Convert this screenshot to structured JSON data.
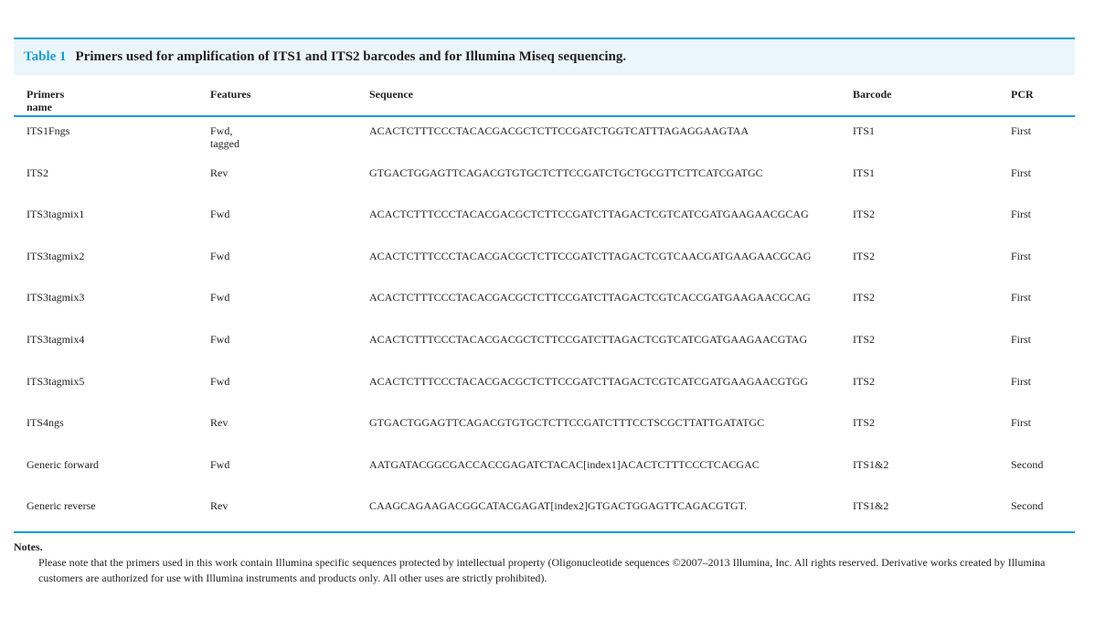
{
  "caption": {
    "label": "Table 1",
    "title": "Primers used for amplification of ITS1 and ITS2 barcodes and for Illumina Miseq sequencing."
  },
  "headers": [
    "Primers name",
    "Features",
    "Sequence",
    "Barcode",
    "PCR"
  ],
  "rows": [
    [
      "ITS1Fngs",
      "Fwd, tagged",
      "ACACTCTTTCCCTACACGACGCTCTTCCGATCTGGTCATTTAGAGGAAGTAA",
      "ITS1",
      "First"
    ],
    [
      "ITS2",
      "Rev",
      "GTGACTGGAGTTCAGACGTGTGCTCTTCCGATCTGCTGCGTTCTTCATCGATGC",
      "ITS1",
      "First"
    ],
    [
      "ITS3tagmix1",
      "Fwd",
      "ACACTCTTTCCCTACACGACGCTCTTCCGATCTTAGACTCGTCATCGATGAAGAACGCAG",
      "ITS2",
      "First"
    ],
    [
      "ITS3tagmix2",
      "Fwd",
      "ACACTCTTTCCCTACACGACGCTCTTCCGATCTTAGACTCGTCAACGATGAAGAACGCAG",
      "ITS2",
      "First"
    ],
    [
      "ITS3tagmix3",
      "Fwd",
      "ACACTCTTTCCCTACACGACGCTCTTCCGATCTTAGACTCGTCACCGATGAAGAACGCAG",
      "ITS2",
      "First"
    ],
    [
      "ITS3tagmix4",
      "Fwd",
      "ACACTCTTTCCCTACACGACGCTCTTCCGATCTTAGACTCGTCATCGATGAAGAACGTAG",
      "ITS2",
      "First"
    ],
    [
      "ITS3tagmix5",
      "Fwd",
      "ACACTCTTTCCCTACACGACGCTCTTCCGATCTTAGACTCGTCATCGATGAAGAACGTGG",
      "ITS2",
      "First"
    ],
    [
      "ITS4ngs",
      "Rev",
      "GTGACTGGAGTTCAGACGTGTGCTCTTCCGATCTTTCCTSCGCTTATTGATATGC",
      "ITS2",
      "First"
    ],
    [
      "Generic forward",
      "Fwd",
      "AATGATACGGCGACCACCGAGATCTACAC[index1]ACACTCTTTCCCTCACGAC",
      "ITS1&2",
      "Second"
    ],
    [
      "Generic reverse",
      "Rev",
      "CAAGCAGAAGACGGCATACGAGAT[index2]GTGACTGGAGTTCAGACGTGT.",
      "ITS1&2",
      "Second"
    ]
  ],
  "notes": {
    "label": "Notes.",
    "text": "Please note that the primers used in this work contain Illumina specific sequences protected by intellectual property (Oligonucleotide sequences ©2007–2013 Illumina, Inc.  All rights reserved. Derivative works created by Illumina customers are authorized for use with Illumina instruments and products only. All other uses are strictly prohibited)."
  },
  "colors": {
    "accent": "#1a9fd8",
    "caption_bg": "#eaf6fb"
  }
}
